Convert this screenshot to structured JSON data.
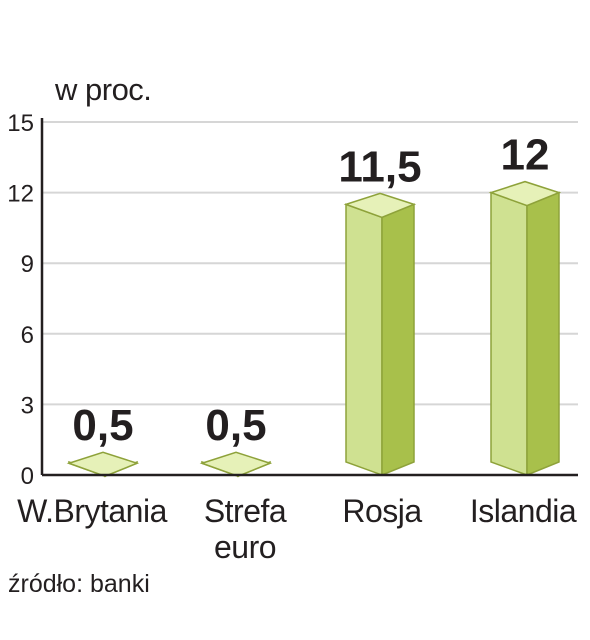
{
  "unit_label": "w proc.",
  "source_label": "źródło: banki",
  "colors": {
    "bar_front": "#cfe191",
    "bar_side": "#a8c04b",
    "bar_top": "#e6f1b8",
    "bar_edge": "#8ea23a",
    "grid": "#d6d6d6",
    "axis": "#231f20",
    "text": "#231f20"
  },
  "chart_data": {
    "type": "bar",
    "categories": [
      "W.Brytania",
      "Strefa\neuro",
      "Rosja",
      "Islandia"
    ],
    "values": [
      0.5,
      0.5,
      11.5,
      12
    ],
    "value_labels": [
      "0,5",
      "0,5",
      "11,5",
      "12"
    ],
    "ylabel": "w proc.",
    "ylim": [
      0,
      15
    ],
    "yticks": [
      0,
      3,
      6,
      9,
      12,
      15
    ],
    "grid": true,
    "bar_style": "3d"
  }
}
